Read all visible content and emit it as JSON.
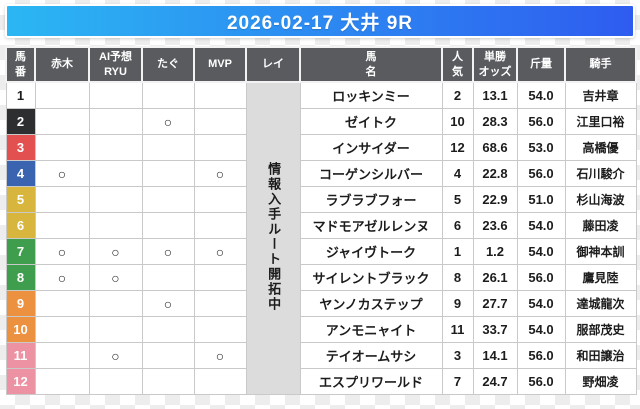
{
  "title": "2026-02-17 大井 9R",
  "banner": {
    "gradient_left": "#2bb7f3",
    "gradient_right": "#2e5cf0"
  },
  "waku_colors": {
    "white": {
      "bg": "#ffffff",
      "text": "#1c1c1c"
    },
    "black": {
      "bg": "#2d2e30",
      "text": "#ffffff"
    },
    "red": {
      "bg": "#e25050",
      "text": "#ffffff"
    },
    "blue": {
      "bg": "#3a63b0",
      "text": "#ffffff"
    },
    "yellow": {
      "bg": "#d8b53c",
      "text": "#ffffff"
    },
    "green": {
      "bg": "#3f9e4d",
      "text": "#ffffff"
    },
    "orange": {
      "bg": "#ec9140",
      "text": "#ffffff"
    },
    "pink": {
      "bg": "#ec92a2",
      "text": "#ffffff"
    }
  },
  "table": {
    "headers": {
      "umaban": "馬\n番",
      "akagi": "赤木",
      "ai_ryu": "AI予想\nRYU",
      "tagu": "たぐ",
      "mvp": "MVP",
      "rei": "レイ",
      "uma_mei": "馬\n名",
      "ninki": "人\n気",
      "tansho_odds": "単勝\nオッズ",
      "kinryo": "斤量",
      "kishu": "騎手"
    },
    "rei_note": "情報入手ルート開拓中",
    "mark_symbol": "○",
    "rows": [
      {
        "num": "1",
        "waku": "white",
        "marks": {
          "akagi": "",
          "ai_ryu": "",
          "tagu": "",
          "mvp": ""
        },
        "horse": "ロッキンミー",
        "ninki": "2",
        "odds": "13.1",
        "kinryo": "54.0",
        "jockey": "吉井章"
      },
      {
        "num": "2",
        "waku": "black",
        "marks": {
          "akagi": "",
          "ai_ryu": "",
          "tagu": "○",
          "mvp": ""
        },
        "horse": "ゼイトク",
        "ninki": "10",
        "odds": "28.3",
        "kinryo": "56.0",
        "jockey": "江里口裕"
      },
      {
        "num": "3",
        "waku": "red",
        "marks": {
          "akagi": "",
          "ai_ryu": "",
          "tagu": "",
          "mvp": ""
        },
        "horse": "インサイダー",
        "ninki": "12",
        "odds": "68.6",
        "kinryo": "53.0",
        "jockey": "高橋優"
      },
      {
        "num": "4",
        "waku": "blue",
        "marks": {
          "akagi": "○",
          "ai_ryu": "",
          "tagu": "",
          "mvp": "○"
        },
        "horse": "コーゲンシルバー",
        "ninki": "4",
        "odds": "22.8",
        "kinryo": "56.0",
        "jockey": "石川駿介"
      },
      {
        "num": "5",
        "waku": "yellow",
        "marks": {
          "akagi": "",
          "ai_ryu": "",
          "tagu": "",
          "mvp": ""
        },
        "horse": "ラブラブフォー",
        "ninki": "5",
        "odds": "22.9",
        "kinryo": "51.0",
        "jockey": "杉山海波"
      },
      {
        "num": "6",
        "waku": "yellow",
        "marks": {
          "akagi": "",
          "ai_ryu": "",
          "tagu": "",
          "mvp": ""
        },
        "horse": "マドモアゼルレンヌ",
        "ninki": "6",
        "odds": "23.6",
        "kinryo": "54.0",
        "jockey": "藤田凌"
      },
      {
        "num": "7",
        "waku": "green",
        "marks": {
          "akagi": "○",
          "ai_ryu": "○",
          "tagu": "○",
          "mvp": "○"
        },
        "horse": "ジャイヴトーク",
        "ninki": "1",
        "odds": "1.2",
        "kinryo": "54.0",
        "jockey": "御神本訓"
      },
      {
        "num": "8",
        "waku": "green",
        "marks": {
          "akagi": "○",
          "ai_ryu": "○",
          "tagu": "",
          "mvp": ""
        },
        "horse": "サイレントブラック",
        "ninki": "8",
        "odds": "26.1",
        "kinryo": "56.0",
        "jockey": "鷹見陸"
      },
      {
        "num": "9",
        "waku": "orange",
        "marks": {
          "akagi": "",
          "ai_ryu": "",
          "tagu": "○",
          "mvp": ""
        },
        "horse": "ヤンノカステップ",
        "ninki": "9",
        "odds": "27.7",
        "kinryo": "54.0",
        "jockey": "達城龍次"
      },
      {
        "num": "10",
        "waku": "orange",
        "marks": {
          "akagi": "",
          "ai_ryu": "",
          "tagu": "",
          "mvp": ""
        },
        "horse": "アンモニャイト",
        "ninki": "11",
        "odds": "33.7",
        "kinryo": "54.0",
        "jockey": "服部茂史"
      },
      {
        "num": "11",
        "waku": "pink",
        "marks": {
          "akagi": "",
          "ai_ryu": "○",
          "tagu": "",
          "mvp": "○"
        },
        "horse": "テイオームサシ",
        "ninki": "3",
        "odds": "14.1",
        "kinryo": "56.0",
        "jockey": "和田譲治"
      },
      {
        "num": "12",
        "waku": "pink",
        "marks": {
          "akagi": "",
          "ai_ryu": "",
          "tagu": "",
          "mvp": ""
        },
        "horse": "エスプリワールド",
        "ninki": "7",
        "odds": "24.7",
        "kinryo": "56.0",
        "jockey": "野畑凌"
      }
    ]
  }
}
